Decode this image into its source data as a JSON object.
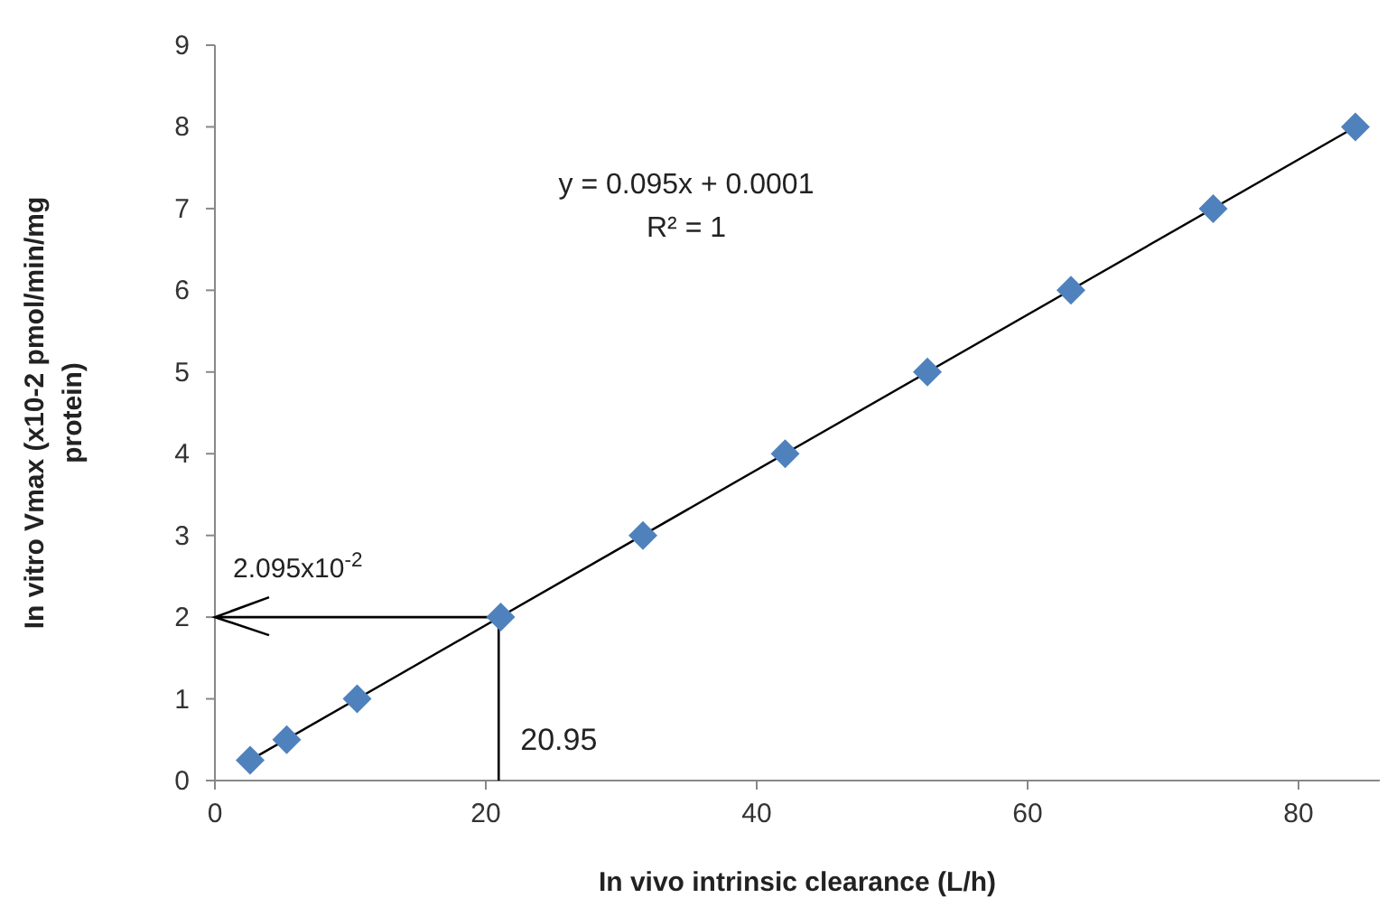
{
  "chart_data": {
    "type": "scatter",
    "xlabel": "In vivo intrinsic  clearance (L/h)",
    "ylabel": "In vitro Vmax (x10-2 pmol/min/mg protein)",
    "xlim": [
      0,
      86
    ],
    "xticks": [
      0,
      20,
      40,
      60,
      80
    ],
    "ylim": [
      0,
      9
    ],
    "yticks": [
      0,
      1,
      2,
      3,
      4,
      5,
      6,
      7,
      8,
      9
    ],
    "grid": false,
    "series": [
      {
        "color": "#4f81bd",
        "marker": "diamond",
        "x": [
          2.6,
          5.3,
          10.5,
          21.1,
          31.6,
          42.1,
          52.6,
          63.2,
          73.7,
          84.2
        ],
        "values": [
          0.25,
          0.5,
          1,
          2,
          3,
          4,
          5,
          6,
          7,
          8
        ]
      },
      {
        "type": "line",
        "color": "#000000",
        "line_style": "solid",
        "marker": "none",
        "x": [
          2.6,
          84.2
        ],
        "values": [
          0.25,
          8
        ]
      }
    ],
    "ref_lines": [
      {
        "axis": "y",
        "value": 2,
        "label": "2.095x10$^{-2}$",
        "color": "#000000"
      },
      {
        "axis": "x",
        "value": 20.95,
        "label": "20.95",
        "color": "#000000"
      }
    ],
    "annotations": [
      "y = 0.095x + 0.0001",
      "R² = 1"
    ]
  }
}
